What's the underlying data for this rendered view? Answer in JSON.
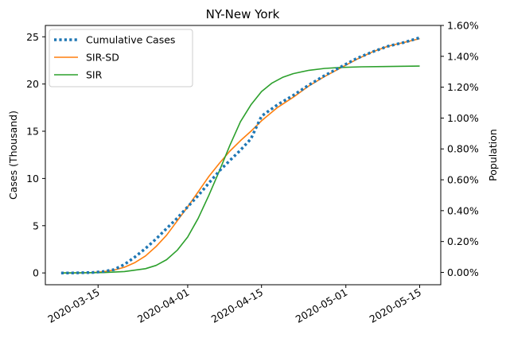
{
  "chart_data": {
    "type": "line",
    "title": "NY-New York",
    "xlabel": "",
    "ylabel": "Cases (Thousand)",
    "y2label": "Population",
    "x_ticks": [
      "2020-03-15",
      "2020-04-01",
      "2020-04-15",
      "2020-05-01",
      "2020-05-15"
    ],
    "y_ticks": [
      0,
      5,
      10,
      15,
      20,
      25
    ],
    "y2_ticks": [
      "0.00%",
      "0.20%",
      "0.40%",
      "0.60%",
      "0.80%",
      "1.00%",
      "1.20%",
      "1.40%",
      "1.60%"
    ],
    "xlim": [
      "2020-03-05",
      "2020-05-19"
    ],
    "ylim": [
      -1.25,
      26.2
    ],
    "y2lim": [
      -0.0008,
      0.016
    ],
    "grid": false,
    "legend_position": "top-left",
    "series": [
      {
        "name": "Cumulative Cases",
        "style": "dotted",
        "color": "#1f77b4",
        "x": [
          "2020-03-08",
          "2020-03-10",
          "2020-03-12",
          "2020-03-14",
          "2020-03-16",
          "2020-03-18",
          "2020-03-20",
          "2020-03-22",
          "2020-03-24",
          "2020-03-26",
          "2020-03-28",
          "2020-03-30",
          "2020-04-01",
          "2020-04-03",
          "2020-04-05",
          "2020-04-07",
          "2020-04-09",
          "2020-04-11",
          "2020-04-13",
          "2020-04-15",
          "2020-04-18",
          "2020-04-21",
          "2020-04-24",
          "2020-04-27",
          "2020-04-30",
          "2020-05-03",
          "2020-05-06",
          "2020-05-09",
          "2020-05-12",
          "2020-05-15"
        ],
        "y": [
          0.0,
          0.0,
          0.02,
          0.05,
          0.15,
          0.35,
          0.9,
          1.7,
          2.6,
          3.6,
          4.7,
          5.8,
          7.0,
          8.2,
          9.5,
          10.8,
          11.9,
          13.0,
          14.2,
          16.6,
          17.8,
          18.8,
          19.9,
          20.9,
          21.8,
          22.7,
          23.4,
          24.0,
          24.4,
          24.9
        ]
      },
      {
        "name": "SIR-SD",
        "style": "solid",
        "color": "#ff7f0e",
        "x": [
          "2020-03-08",
          "2020-03-10",
          "2020-03-12",
          "2020-03-14",
          "2020-03-16",
          "2020-03-18",
          "2020-03-20",
          "2020-03-22",
          "2020-03-24",
          "2020-03-26",
          "2020-03-28",
          "2020-03-30",
          "2020-04-01",
          "2020-04-03",
          "2020-04-05",
          "2020-04-07",
          "2020-04-09",
          "2020-04-11",
          "2020-04-13",
          "2020-04-15",
          "2020-04-18",
          "2020-04-21",
          "2020-04-24",
          "2020-04-27",
          "2020-04-30",
          "2020-05-03",
          "2020-05-06",
          "2020-05-09",
          "2020-05-12",
          "2020-05-15"
        ],
        "y": [
          0.0,
          0.0,
          0.01,
          0.04,
          0.12,
          0.3,
          0.6,
          1.1,
          1.8,
          2.8,
          4.0,
          5.5,
          7.0,
          8.6,
          10.2,
          11.6,
          12.9,
          14.0,
          15.0,
          16.1,
          17.5,
          18.6,
          19.8,
          20.8,
          21.7,
          22.6,
          23.4,
          24.0,
          24.4,
          24.8
        ]
      },
      {
        "name": "SIR",
        "style": "solid",
        "color": "#2ca02c",
        "x": [
          "2020-03-08",
          "2020-03-12",
          "2020-03-16",
          "2020-03-20",
          "2020-03-24",
          "2020-03-26",
          "2020-03-28",
          "2020-03-30",
          "2020-04-01",
          "2020-04-03",
          "2020-04-05",
          "2020-04-07",
          "2020-04-09",
          "2020-04-11",
          "2020-04-13",
          "2020-04-15",
          "2020-04-17",
          "2020-04-19",
          "2020-04-21",
          "2020-04-24",
          "2020-04-27",
          "2020-04-30",
          "2020-05-04",
          "2020-05-08",
          "2020-05-12",
          "2020-05-15"
        ],
        "y": [
          0.0,
          0.01,
          0.04,
          0.15,
          0.45,
          0.8,
          1.4,
          2.4,
          3.8,
          5.8,
          8.2,
          10.8,
          13.5,
          16.0,
          17.8,
          19.2,
          20.1,
          20.7,
          21.1,
          21.45,
          21.65,
          21.75,
          21.82,
          21.85,
          21.88,
          21.9
        ]
      }
    ]
  }
}
